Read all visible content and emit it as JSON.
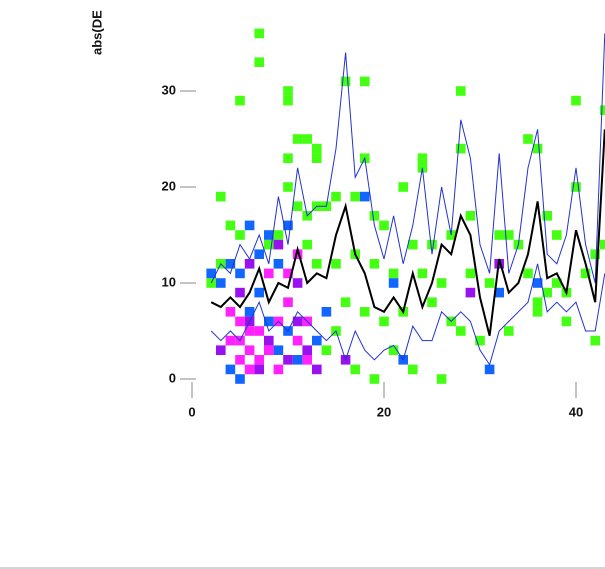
{
  "chart_data": {
    "type": "scatter",
    "y_label": "abs(DE",
    "xlim": [
      0,
      43
    ],
    "ylim": [
      -1,
      37
    ],
    "xticks": [
      0,
      20,
      40
    ],
    "yticks": [
      0,
      10,
      20,
      30
    ],
    "cells": [
      {
        "color": "#44ff11",
        "x": [
          7,
          7,
          16,
          18,
          5,
          10,
          10,
          28,
          40,
          43,
          11,
          12,
          13,
          10,
          13,
          18,
          24,
          24,
          28,
          35,
          36,
          40,
          3,
          10,
          11,
          12,
          13,
          14,
          15,
          17,
          19,
          20,
          22,
          23,
          25,
          27,
          29,
          32,
          33,
          34,
          37,
          38,
          42,
          43,
          4,
          5,
          8,
          9,
          12,
          13,
          15,
          17,
          19,
          21,
          24,
          26,
          29,
          31,
          35,
          38,
          41,
          3,
          2,
          16,
          18,
          20,
          22,
          25,
          27,
          28,
          30,
          33,
          36,
          39,
          42,
          21,
          23,
          26,
          17,
          19,
          14,
          15,
          36,
          39,
          37
        ],
        "y": [
          36,
          33,
          31,
          31,
          29,
          30,
          29,
          30,
          29,
          28,
          25,
          25,
          24,
          23,
          23,
          23,
          23,
          22,
          24,
          25,
          24,
          20,
          19,
          20,
          18,
          17,
          18,
          18,
          19,
          19,
          17,
          16,
          20,
          14,
          14,
          15,
          17,
          15,
          15,
          14,
          17,
          15,
          13,
          14,
          16,
          15,
          14,
          15,
          14,
          12,
          12,
          13,
          12,
          11,
          11,
          10,
          11,
          10,
          11,
          10,
          11,
          12,
          10,
          8,
          7,
          6,
          7,
          8,
          6,
          5,
          4,
          5,
          7,
          6,
          4,
          3,
          1,
          0,
          1,
          0,
          3,
          5,
          8,
          9,
          9
        ]
      },
      {
        "color": "#1166ff",
        "x": [
          6,
          8,
          10,
          18,
          7,
          4,
          9,
          5,
          2,
          3,
          7,
          6,
          8,
          10,
          9,
          4,
          5,
          11,
          13,
          21,
          22,
          31,
          32,
          36,
          14
        ],
        "y": [
          16,
          15,
          16,
          19,
          13,
          12,
          12,
          11,
          11,
          10,
          9,
          7,
          6,
          5,
          3,
          1,
          0,
          2,
          4,
          10,
          2,
          1,
          9,
          10,
          7
        ]
      },
      {
        "color": "#9911ee",
        "x": [
          6,
          9,
          5,
          8,
          10,
          12,
          16,
          6,
          11,
          29,
          32,
          3,
          7,
          13,
          11
        ],
        "y": [
          12,
          14,
          9,
          4,
          2,
          3,
          2,
          6,
          10,
          9,
          12,
          3,
          1,
          1,
          6
        ]
      },
      {
        "color": "#ff22ff",
        "x": [
          4,
          5,
          6,
          5,
          6,
          7,
          8,
          9,
          10,
          11,
          12,
          7,
          4,
          9,
          11,
          12,
          6,
          5,
          8,
          10
        ],
        "y": [
          7,
          6,
          5,
          4,
          3,
          2,
          3,
          6,
          8,
          13,
          6,
          5,
          4,
          1,
          4,
          2,
          1,
          2,
          11,
          11
        ]
      }
    ],
    "series": [
      {
        "color": "#2233cc",
        "width": 1,
        "x": [
          2,
          3,
          4,
          5,
          6,
          7,
          8,
          9,
          10,
          11,
          12,
          13,
          14,
          15,
          16,
          17,
          18,
          19,
          20,
          21,
          22,
          23,
          24,
          25,
          26,
          27,
          28,
          29,
          30,
          31,
          32,
          33,
          34,
          35,
          36,
          37,
          38,
          39,
          40,
          41,
          42,
          43
        ],
        "values": [
          10,
          12,
          11,
          14,
          12.5,
          15,
          12,
          19,
          14,
          22,
          17,
          18,
          18,
          24,
          34,
          21,
          23,
          16,
          12.5,
          17,
          12,
          16,
          22,
          13,
          20,
          15,
          27,
          23,
          14,
          11,
          23.5,
          11,
          14,
          22,
          26,
          13,
          12,
          15,
          22,
          14,
          10,
          36
        ]
      },
      {
        "color": "#2233cc",
        "width": 1,
        "x": [
          2,
          3,
          4,
          5,
          6,
          7,
          8,
          9,
          10,
          11,
          12,
          13,
          14,
          15,
          16,
          17,
          18,
          19,
          20,
          21,
          22,
          23,
          24,
          25,
          26,
          27,
          28,
          29,
          30,
          31,
          32,
          33,
          34,
          35,
          36,
          37,
          38,
          39,
          40,
          41,
          42,
          43
        ],
        "values": [
          5,
          4,
          5,
          4,
          6,
          8,
          5,
          6,
          5,
          7,
          6,
          5,
          4,
          5,
          2,
          5,
          3,
          2,
          3,
          3.5,
          2,
          5.5,
          4,
          4,
          7,
          6,
          7,
          6,
          3,
          1.5,
          5,
          6,
          7,
          8,
          12,
          7,
          8,
          7,
          8,
          5,
          5,
          11
        ]
      },
      {
        "color": "#000000",
        "width": 2,
        "x": [
          2,
          3,
          4,
          5,
          6,
          7,
          8,
          9,
          10,
          11,
          12,
          13,
          14,
          15,
          16,
          17,
          18,
          19,
          20,
          21,
          22,
          23,
          24,
          25,
          26,
          27,
          28,
          29,
          30,
          31,
          32,
          33,
          34,
          35,
          36,
          37,
          38,
          39,
          40,
          41,
          42,
          43
        ],
        "values": [
          8,
          7.5,
          8.5,
          7.5,
          9,
          11.5,
          8,
          10,
          9.5,
          13.5,
          10,
          11,
          10.5,
          15,
          18,
          13,
          11,
          7.5,
          7,
          8.5,
          7,
          11,
          7.5,
          10,
          14,
          13,
          17,
          15,
          8.5,
          4.5,
          12.5,
          9,
          10,
          13,
          18.5,
          10.5,
          11,
          9,
          15.5,
          12,
          8,
          26
        ]
      }
    ]
  }
}
